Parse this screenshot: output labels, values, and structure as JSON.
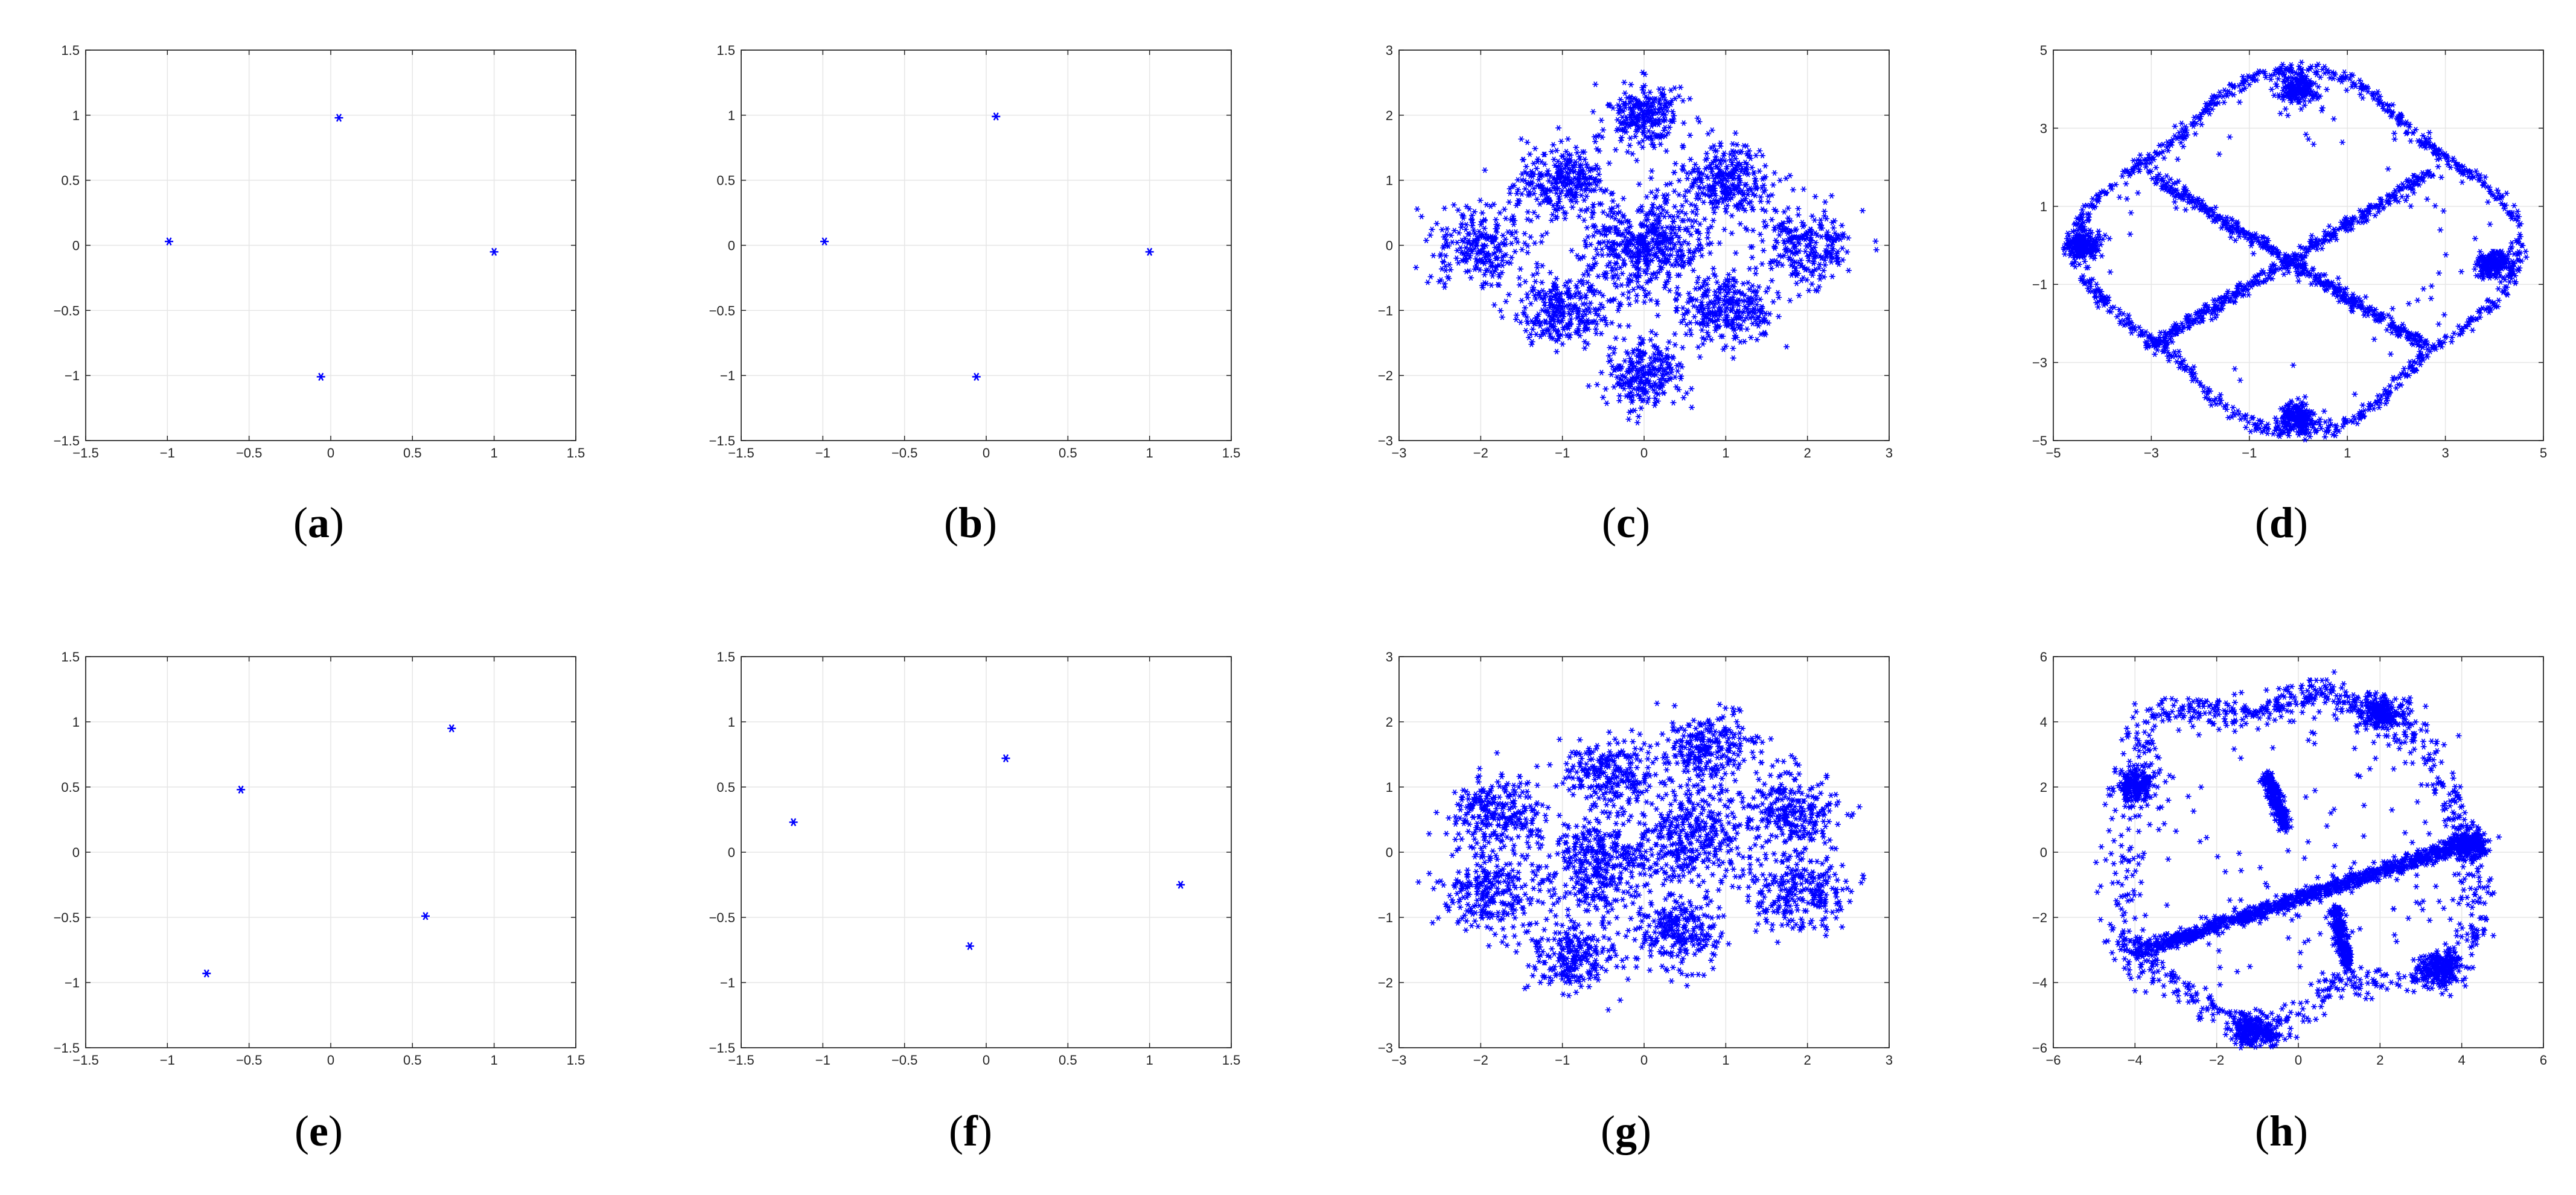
{
  "chart_data": [
    {
      "panel": "a",
      "type": "scatter",
      "marker": "*",
      "color": "#0000ff",
      "grid": true,
      "xlim": [
        -1.5,
        1.5
      ],
      "ylim": [
        -1.5,
        1.5
      ],
      "xticks": [
        "−1.5",
        "−1",
        "−0.5",
        "0",
        "0.5",
        "1",
        "1.5"
      ],
      "yticks": [
        "1.5",
        "1",
        "0.5",
        "0",
        "−0.5",
        "−1",
        "−1.5"
      ],
      "points": [
        [
          -0.99,
          0.03
        ],
        [
          0.05,
          0.98
        ],
        [
          1.0,
          -0.05
        ],
        [
          -0.06,
          -1.01
        ]
      ],
      "caption": "a"
    },
    {
      "panel": "b",
      "type": "scatter",
      "marker": "*",
      "color": "#0000ff",
      "grid": true,
      "xlim": [
        -1.5,
        1.5
      ],
      "ylim": [
        -1.5,
        1.5
      ],
      "xticks": [
        "−1.5",
        "−1",
        "−0.5",
        "0",
        "0.5",
        "1",
        "1.5"
      ],
      "yticks": [
        "1.5",
        "1",
        "0.5",
        "0",
        "−0.5",
        "−1",
        "−1.5"
      ],
      "points": [
        [
          -0.99,
          0.03
        ],
        [
          0.06,
          0.99
        ],
        [
          1.0,
          -0.05
        ],
        [
          -0.06,
          -1.01
        ]
      ],
      "caption": "b"
    },
    {
      "panel": "c",
      "type": "scatter",
      "marker": "*",
      "color": "#0000ff",
      "grid": true,
      "xlim": [
        -3,
        3
      ],
      "ylim": [
        -3,
        3
      ],
      "xticks": [
        "−3",
        "−2",
        "−1",
        "0",
        "1",
        "2",
        "3"
      ],
      "yticks": [
        "3",
        "2",
        "1",
        "0",
        "−1",
        "−2",
        "−3"
      ],
      "clusters": [
        {
          "center": [
            0,
            0
          ],
          "spread": 0.38,
          "count": 520
        },
        {
          "center": [
            0,
            2
          ],
          "spread": 0.24,
          "count": 260
        },
        {
          "center": [
            0,
            -2
          ],
          "spread": 0.26,
          "count": 260
        },
        {
          "center": [
            -1,
            1
          ],
          "spread": 0.28,
          "count": 300
        },
        {
          "center": [
            1,
            1
          ],
          "spread": 0.28,
          "count": 300
        },
        {
          "center": [
            -1,
            -1
          ],
          "spread": 0.28,
          "count": 300
        },
        {
          "center": [
            1,
            -1
          ],
          "spread": 0.28,
          "count": 300
        },
        {
          "center": [
            -2,
            0
          ],
          "spread": 0.3,
          "count": 260
        },
        {
          "center": [
            2,
            0
          ],
          "spread": 0.3,
          "count": 260
        }
      ],
      "caption": "c"
    },
    {
      "panel": "d",
      "type": "scatter",
      "marker": "*",
      "color": "#0000ff",
      "grid": true,
      "xlim": [
        -5,
        5
      ],
      "ylim": [
        -5,
        5
      ],
      "xticks": [
        "−5",
        "−3",
        "−1",
        "1",
        "3",
        "5"
      ],
      "yticks": [
        "5",
        "3",
        "1",
        "−1",
        "−3",
        "−5"
      ],
      "shape": "four-lobed loop with diagonal cross",
      "clusters": [
        {
          "center": [
            0,
            4.0
          ],
          "spread": 0.2,
          "count": 200
        },
        {
          "center": [
            0,
            -4.4
          ],
          "spread": 0.18,
          "count": 200
        },
        {
          "center": [
            -4.4,
            0
          ],
          "spread": 0.18,
          "count": 200
        },
        {
          "center": [
            4.0,
            -0.5
          ],
          "spread": 0.18,
          "count": 200
        }
      ],
      "caption": "d"
    },
    {
      "panel": "e",
      "type": "scatter",
      "marker": "*",
      "color": "#0000ff",
      "grid": true,
      "xlim": [
        -1.5,
        1.5
      ],
      "ylim": [
        -1.5,
        1.5
      ],
      "xticks": [
        "−1.5",
        "−1",
        "−0.5",
        "0",
        "0.5",
        "1",
        "1.5"
      ],
      "yticks": [
        "1.5",
        "1",
        "0.5",
        "0",
        "−0.5",
        "−1",
        "−1.5"
      ],
      "points": [
        [
          -0.55,
          0.48
        ],
        [
          0.74,
          0.95
        ],
        [
          0.58,
          -0.49
        ],
        [
          -0.76,
          -0.93
        ]
      ],
      "caption": "e"
    },
    {
      "panel": "f",
      "type": "scatter",
      "marker": "*",
      "color": "#0000ff",
      "grid": true,
      "xlim": [
        -1.5,
        1.5
      ],
      "ylim": [
        -1.5,
        1.5
      ],
      "xticks": [
        "−1.5",
        "−1",
        "−0.5",
        "0",
        "0.5",
        "1",
        "1.5"
      ],
      "yticks": [
        "1.5",
        "1",
        "0.5",
        "0",
        "−0.5",
        "−1",
        "−1.5"
      ],
      "points": [
        [
          -1.18,
          0.23
        ],
        [
          0.12,
          0.72
        ],
        [
          1.19,
          -0.25
        ],
        [
          -0.1,
          -0.72
        ]
      ],
      "caption": "f"
    },
    {
      "panel": "g",
      "type": "scatter",
      "marker": "*",
      "color": "#0000ff",
      "grid": true,
      "xlim": [
        -3,
        3
      ],
      "ylim": [
        -3,
        3
      ],
      "xticks": [
        "−3",
        "−2",
        "−1",
        "0",
        "1",
        "2",
        "3"
      ],
      "yticks": [
        "3",
        "2",
        "1",
        "0",
        "−1",
        "−2",
        "−3"
      ],
      "clusters": [
        {
          "center": [
            -0.6,
            -0.2
          ],
          "spread": 0.36,
          "count": 380
        },
        {
          "center": [
            0.6,
            0.2
          ],
          "spread": 0.36,
          "count": 380
        },
        {
          "center": [
            -0.4,
            1.2
          ],
          "spread": 0.28,
          "count": 260
        },
        {
          "center": [
            0.8,
            1.6
          ],
          "spread": 0.28,
          "count": 260
        },
        {
          "center": [
            -1.8,
            0.6
          ],
          "spread": 0.28,
          "count": 260
        },
        {
          "center": [
            1.8,
            0.6
          ],
          "spread": 0.3,
          "count": 260
        },
        {
          "center": [
            -1.9,
            -0.6
          ],
          "spread": 0.3,
          "count": 260
        },
        {
          "center": [
            1.9,
            -0.6
          ],
          "spread": 0.3,
          "count": 260
        },
        {
          "center": [
            -0.9,
            -1.6
          ],
          "spread": 0.26,
          "count": 240
        },
        {
          "center": [
            0.4,
            -1.2
          ],
          "spread": 0.26,
          "count": 260
        }
      ],
      "caption": "g"
    },
    {
      "panel": "h",
      "type": "scatter",
      "marker": "*",
      "color": "#0000ff",
      "grid": true,
      "xlim": [
        -6,
        6
      ],
      "ylim": [
        -6,
        6
      ],
      "xticks": [
        "−6",
        "−4",
        "−2",
        "0",
        "2",
        "4",
        "6"
      ],
      "yticks": [
        "6",
        "4",
        "2",
        "0",
        "−2",
        "−4",
        "−6"
      ],
      "shape": "three-lobed loop with diagonal band",
      "clusters": [
        {
          "center": [
            -4.0,
            2.0
          ],
          "spread": 0.25,
          "count": 200
        },
        {
          "center": [
            2.0,
            4.2
          ],
          "spread": 0.28,
          "count": 200
        },
        {
          "center": [
            4.2,
            0.2
          ],
          "spread": 0.22,
          "count": 200
        },
        {
          "center": [
            3.5,
            -3.6
          ],
          "spread": 0.25,
          "count": 220
        },
        {
          "center": [
            -1.2,
            -5.5
          ],
          "spread": 0.25,
          "count": 200
        }
      ],
      "caption": "h"
    }
  ]
}
